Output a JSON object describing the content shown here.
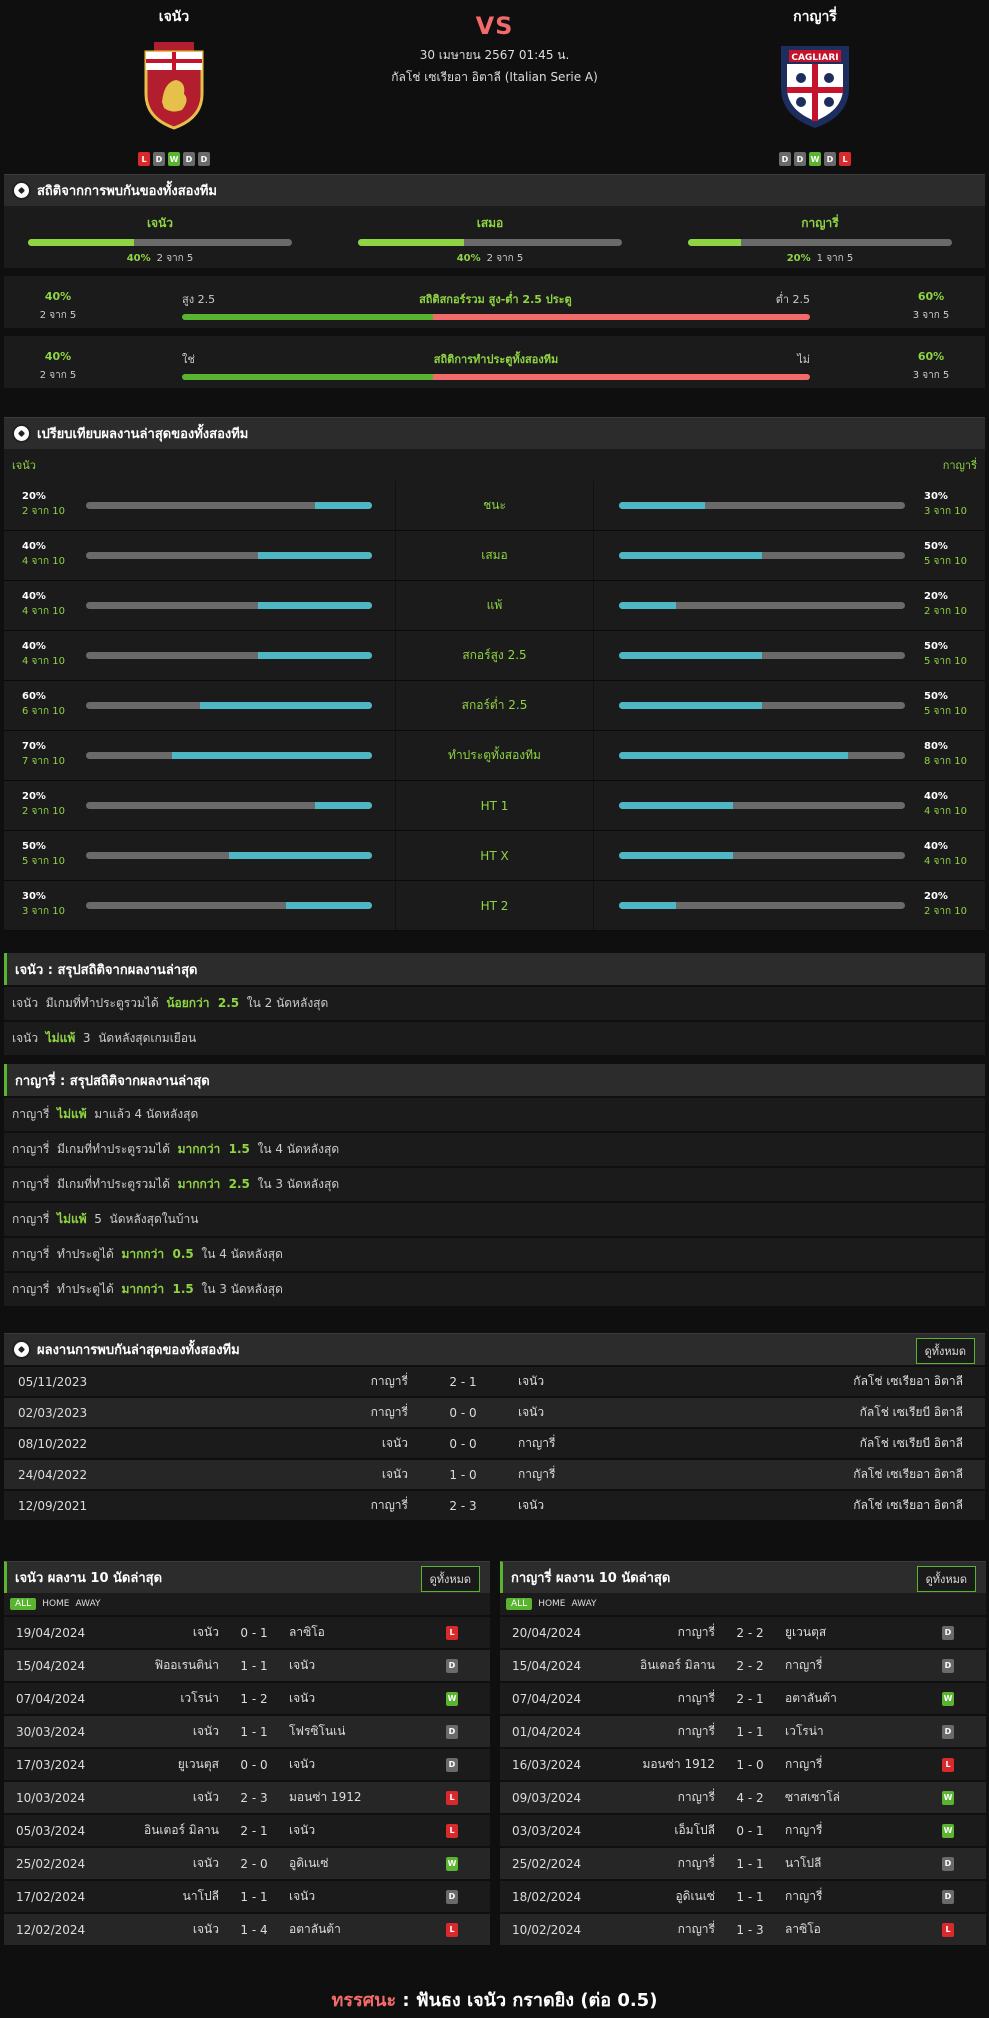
{
  "header": {
    "home": "เจนัว",
    "away": "กาญารี่",
    "vs": "VS",
    "datetime": "30 เมษายน 2567 01:45 น.",
    "league": "กัลโช่ เซเรียอา อิตาลี (Italian Serie A)",
    "home_form": [
      "L",
      "D",
      "W",
      "D",
      "D"
    ],
    "away_form": [
      "D",
      "D",
      "W",
      "D",
      "L"
    ],
    "away_logo_text": "CAGLIARI"
  },
  "colors": {
    "green": "#59b530",
    "red": "#d9292b",
    "teal": "#4fb7c4",
    "pink": "#f26a6a"
  },
  "h2h": {
    "title": "สถิติจากการพบกันของทั้งสองทีม",
    "cols": [
      {
        "label": "เจนัว",
        "pct": "40%",
        "count": "2 จาก 5",
        "value": 0.4
      },
      {
        "label": "เสมอ",
        "pct": "40%",
        "count": "2 จาก 5",
        "value": 0.4
      },
      {
        "label": "กาญารี่",
        "pct": "20%",
        "count": "1 จาก 5",
        "value": 0.2
      }
    ],
    "ou": {
      "left_pct": "40%",
      "left_count": "2 จาก 5",
      "left_label": "สูง 2.5",
      "title": "สถิติสกอร์รวม สูง-ต่ำ 2.5 ประตู",
      "right_label": "ต่ำ 2.5",
      "right_pct": "60%",
      "right_count": "3 จาก 5",
      "value": 0.4
    },
    "btts": {
      "left_pct": "40%",
      "left_count": "2 จาก 5",
      "left_label": "ใช่",
      "title": "สถิติการทำประตูทั้งสองทีม",
      "right_label": "ไม่",
      "right_pct": "60%",
      "right_count": "3 จาก 5",
      "value": 0.4
    }
  },
  "compare": {
    "title": "เปรียบเทียบผลงานล่าสุดของทั้งสองทีม",
    "home": "เจนัว",
    "away": "กาญารี่",
    "rows": [
      {
        "label": "ชนะ",
        "hp": "20%",
        "hc": "2 จาก 10",
        "hv": 0.2,
        "ap": "30%",
        "ac": "3 จาก 10",
        "av": 0.3
      },
      {
        "label": "เสมอ",
        "hp": "40%",
        "hc": "4 จาก 10",
        "hv": 0.4,
        "ap": "50%",
        "ac": "5 จาก 10",
        "av": 0.5
      },
      {
        "label": "แพ้",
        "hp": "40%",
        "hc": "4 จาก 10",
        "hv": 0.4,
        "ap": "20%",
        "ac": "2 จาก 10",
        "av": 0.2
      },
      {
        "label": "สกอร์สูง 2.5",
        "hp": "40%",
        "hc": "4 จาก 10",
        "hv": 0.4,
        "ap": "50%",
        "ac": "5 จาก 10",
        "av": 0.5
      },
      {
        "label": "สกอร์ต่ำ 2.5",
        "hp": "60%",
        "hc": "6 จาก 10",
        "hv": 0.6,
        "ap": "50%",
        "ac": "5 จาก 10",
        "av": 0.5
      },
      {
        "label": "ทำประตูทั้งสองทีม",
        "hp": "70%",
        "hc": "7 จาก 10",
        "hv": 0.7,
        "ap": "80%",
        "ac": "8 จาก 10",
        "av": 0.8
      },
      {
        "label": "HT 1",
        "hp": "20%",
        "hc": "2 จาก 10",
        "hv": 0.2,
        "ap": "40%",
        "ac": "4 จาก 10",
        "av": 0.4
      },
      {
        "label": "HT X",
        "hp": "50%",
        "hc": "5 จาก 10",
        "hv": 0.5,
        "ap": "40%",
        "ac": "4 จาก 10",
        "av": 0.4
      },
      {
        "label": "HT 2",
        "hp": "30%",
        "hc": "3 จาก 10",
        "hv": 0.3,
        "ap": "20%",
        "ac": "2 จาก 10",
        "av": 0.2
      }
    ]
  },
  "home_summary": {
    "title": "เจนัว : สรุปสถิติจากผลงานล่าสุด",
    "rows": [
      [
        "เจนัว  มีเกมที่ทำประตูรวมได้  ",
        "น้อยกว่า  2.5",
        "  ใน 2 นัดหลังสุด"
      ],
      [
        "เจนัว  ",
        "ไม่แพ้",
        "  3  นัดหลังสุดเกมเยือน"
      ]
    ]
  },
  "away_summary": {
    "title": "กาญารี่ : สรุปสถิติจากผลงานล่าสุด",
    "rows": [
      [
        "กาญารี่  ",
        "ไม่แพ้",
        "  มาแล้ว 4 นัดหลังสุด"
      ],
      [
        "กาญารี่  มีเกมที่ทำประตูรวมได้  ",
        "มากกว่า  1.5",
        "  ใน 4 นัดหลังสุด"
      ],
      [
        "กาญารี่  มีเกมที่ทำประตูรวมได้  ",
        "มากกว่า  2.5",
        "  ใน 3 นัดหลังสุด"
      ],
      [
        "กาญารี่  ",
        "ไม่แพ้",
        "  5  นัดหลังสุดในบ้าน"
      ],
      [
        "กาญารี่  ทำประตูได้  ",
        "มากกว่า  0.5",
        "  ใน 4 นัดหลังสุด"
      ],
      [
        "กาญารี่  ทำประตูได้  ",
        "มากกว่า  1.5",
        "  ใน 3 นัดหลังสุด"
      ]
    ]
  },
  "meetings": {
    "title": "ผลงานการพบกันล่าสุดของทั้งสองทีม",
    "view_all": "ดูทั้งหมด",
    "rows": [
      [
        "05/11/2023",
        "กาญารี่",
        "2 - 1",
        "เจนัว",
        "กัลโช่ เซเรียอา อิตาลี"
      ],
      [
        "02/03/2023",
        "กาญารี่",
        "0 - 0",
        "เจนัว",
        "กัลโช่ เซเรียบี อิตาลี"
      ],
      [
        "08/10/2022",
        "เจนัว",
        "0 - 0",
        "กาญารี่",
        "กัลโช่ เซเรียบี อิตาลี"
      ],
      [
        "24/04/2022",
        "เจนัว",
        "1 - 0",
        "กาญารี่",
        "กัลโช่ เซเรียอา อิตาลี"
      ],
      [
        "12/09/2021",
        "กาญารี่",
        "2 - 3",
        "เจนัว",
        "กัลโช่ เซเรียอา อิตาลี"
      ]
    ]
  },
  "home_last": {
    "title": "เจนัว ผลงาน 10 นัดล่าสุด",
    "view_all": "ดูทั้งหมด",
    "filters": [
      "ALL",
      "HOME",
      "AWAY"
    ],
    "rows": [
      [
        "19/04/2024",
        "เจนัว",
        "0 - 1",
        "ลาซิโอ",
        "L"
      ],
      [
        "15/04/2024",
        "ฟิออเรนติน่า",
        "1 - 1",
        "เจนัว",
        "D"
      ],
      [
        "07/04/2024",
        "เวโรน่า",
        "1 - 2",
        "เจนัว",
        "W"
      ],
      [
        "30/03/2024",
        "เจนัว",
        "1 - 1",
        "โฟรซิโนเน่",
        "D"
      ],
      [
        "17/03/2024",
        "ยูเวนตุส",
        "0 - 0",
        "เจนัว",
        "D"
      ],
      [
        "10/03/2024",
        "เจนัว",
        "2 - 3",
        "มอนซ่า 1912",
        "L"
      ],
      [
        "05/03/2024",
        "อินเตอร์ มิลาน",
        "2 - 1",
        "เจนัว",
        "L"
      ],
      [
        "25/02/2024",
        "เจนัว",
        "2 - 0",
        "อูดิเนเซ่",
        "W"
      ],
      [
        "17/02/2024",
        "นาโปลี",
        "1 - 1",
        "เจนัว",
        "D"
      ],
      [
        "12/02/2024",
        "เจนัว",
        "1 - 4",
        "อตาลันต้า",
        "L"
      ]
    ]
  },
  "away_last": {
    "title": "กาญารี่ ผลงาน 10 นัดล่าสุด",
    "view_all": "ดูทั้งหมด",
    "filters": [
      "ALL",
      "HOME",
      "AWAY"
    ],
    "rows": [
      [
        "20/04/2024",
        "กาญารี่",
        "2 - 2",
        "ยูเวนตุส",
        "D"
      ],
      [
        "15/04/2024",
        "อินเตอร์ มิลาน",
        "2 - 2",
        "กาญารี่",
        "D"
      ],
      [
        "07/04/2024",
        "กาญารี่",
        "2 - 1",
        "อตาลันต้า",
        "W"
      ],
      [
        "01/04/2024",
        "กาญารี่",
        "1 - 1",
        "เวโรน่า",
        "D"
      ],
      [
        "16/03/2024",
        "มอนซ่า 1912",
        "1 - 0",
        "กาญารี่",
        "L"
      ],
      [
        "09/03/2024",
        "กาญารี่",
        "4 - 2",
        "ซาสเซาโล่",
        "W"
      ],
      [
        "03/03/2024",
        "เอ็มโปลี",
        "0 - 1",
        "กาญารี่",
        "W"
      ],
      [
        "25/02/2024",
        "กาญารี่",
        "1 - 1",
        "นาโปลี",
        "D"
      ],
      [
        "18/02/2024",
        "อูดิเนเซ่",
        "1 - 1",
        "กาญารี่",
        "D"
      ],
      [
        "10/02/2024",
        "กาญารี่",
        "1 - 3",
        "ลาซิโอ",
        "L"
      ]
    ]
  },
  "verdict": {
    "label": "ทรรศนะ",
    "sep": " : ",
    "text": "ฟันธง เจนัว กราดยิง (ต่อ 0.5)"
  }
}
